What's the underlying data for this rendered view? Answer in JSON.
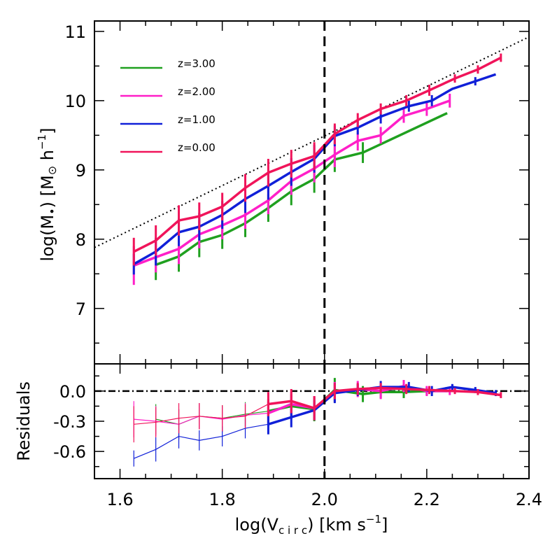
{
  "chart_data": [
    {
      "type": "line",
      "panel": "main",
      "xlabel": "log(V",
      "xlabel_sub": "c i r c",
      "xlabel_unit": ") [km s",
      "xlabel_sup": "−1",
      "xlabel_end": "]",
      "ylabel": "log(M",
      "ylabel_sub": "•",
      "ylabel_unit": ") [M",
      "ylabel_sun": "⊙",
      "ylabel_h": " h",
      "ylabel_sup": "−1",
      "ylabel_end": "]",
      "xlim": [
        1.55,
        2.4
      ],
      "ylim": [
        6.2,
        11.15
      ],
      "xticks": [
        "1.6",
        "1.8",
        "2.0",
        "2.2",
        "2.4"
      ],
      "yticks": [
        "7",
        "8",
        "9",
        "10",
        "11"
      ],
      "vline_x": 2.0,
      "reference_line": {
        "style": "dotted",
        "points": [
          [
            1.55,
            7.88
          ],
          [
            2.4,
            10.92
          ]
        ]
      },
      "legend": {
        "placement": "top-left",
        "entries": [
          "z=3.00",
          "z=2.00",
          "z=1.00",
          "z=0.00"
        ]
      },
      "series": [
        {
          "name": "z=3.00",
          "color": "#1fa01f",
          "x": [
            1.67,
            1.715,
            1.755,
            1.8,
            1.845,
            1.89,
            1.935,
            1.98,
            2.02,
            2.075,
            2.24
          ],
          "y": [
            7.63,
            7.75,
            7.96,
            8.06,
            8.23,
            8.45,
            8.69,
            8.87,
            9.15,
            9.25,
            9.82
          ],
          "err": [
            0.22,
            0.22,
            0.22,
            0.2,
            0.2,
            0.2,
            0.2,
            0.2,
            0.18,
            0.15,
            0
          ]
        },
        {
          "name": "z=2.00",
          "color": "#ff1fc8",
          "x": [
            1.627,
            1.67,
            1.715,
            1.755,
            1.8,
            1.845,
            1.89,
            1.935,
            1.98,
            2.02,
            2.065,
            2.11,
            2.155,
            2.2,
            2.245
          ],
          "y": [
            7.62,
            7.74,
            7.86,
            8.07,
            8.2,
            8.35,
            8.56,
            8.84,
            9.02,
            9.22,
            9.42,
            9.5,
            9.78,
            9.88,
            10.0
          ],
          "err": [
            0.28,
            0.22,
            0.22,
            0.2,
            0.2,
            0.2,
            0.2,
            0.2,
            0.2,
            0.18,
            0.14,
            0.12,
            0.1,
            0.1,
            0.1
          ]
        },
        {
          "name": "z=1.00",
          "color": "#1020d8",
          "x": [
            1.627,
            1.67,
            1.715,
            1.755,
            1.8,
            1.845,
            1.89,
            1.935,
            1.98,
            2.02,
            2.065,
            2.11,
            2.165,
            2.21,
            2.25,
            2.295,
            2.335
          ],
          "y": [
            7.64,
            7.82,
            8.1,
            8.18,
            8.35,
            8.58,
            8.77,
            8.97,
            9.16,
            9.49,
            9.61,
            9.77,
            9.92,
            10.0,
            10.17,
            10.28,
            10.38
          ],
          "err": [
            0.15,
            0.2,
            0.2,
            0.2,
            0.2,
            0.2,
            0.2,
            0.2,
            0.2,
            0.15,
            0.1,
            0.1,
            0.08,
            0.08,
            0,
            0.06,
            0
          ]
        },
        {
          "name": "z=0.00",
          "color": "#f0145a",
          "x": [
            1.627,
            1.67,
            1.715,
            1.755,
            1.8,
            1.845,
            1.89,
            1.935,
            1.98,
            2.02,
            2.065,
            2.11,
            2.16,
            2.205,
            2.255,
            2.3,
            2.345
          ],
          "y": [
            7.82,
            7.98,
            8.27,
            8.33,
            8.47,
            8.74,
            8.96,
            9.09,
            9.2,
            9.52,
            9.72,
            9.88,
            10.0,
            10.15,
            10.32,
            10.45,
            10.62
          ],
          "err": [
            0.2,
            0.22,
            0.22,
            0.2,
            0.2,
            0.2,
            0.2,
            0.2,
            0.2,
            0.15,
            0.1,
            0.08,
            0.08,
            0.08,
            0.06,
            0.06,
            0.06
          ]
        }
      ]
    },
    {
      "type": "line",
      "panel": "residuals",
      "ylabel": "Residuals",
      "xlim": [
        1.55,
        2.4
      ],
      "ylim": [
        -0.87,
        0.27
      ],
      "yticks": [
        "0.0",
        "-0.3",
        "-0.6"
      ],
      "hline_y": 0.0,
      "vline_x": 2.0,
      "series": [
        {
          "name": "z=3.00",
          "color": "#1fa01f",
          "thick_from_x": 1.89,
          "x": [
            1.67,
            1.715,
            1.755,
            1.8,
            1.845,
            1.89,
            1.935,
            1.98,
            2.02,
            2.075,
            2.11,
            2.155,
            2.2,
            2.24
          ],
          "y": [
            -0.28,
            -0.33,
            -0.25,
            -0.27,
            -0.23,
            -0.2,
            -0.15,
            -0.18,
            0.01,
            -0.03,
            -0.01,
            -0.01,
            0.0,
            0.0
          ],
          "err": [
            0.15,
            0.15,
            0.13,
            0.13,
            0.12,
            0.12,
            0.12,
            0.12,
            0.12,
            0.08,
            0.06,
            0.06,
            0.04,
            0
          ]
        },
        {
          "name": "z=2.00",
          "color": "#ff1fc8",
          "thick_from_x": 1.89,
          "x": [
            1.627,
            1.67,
            1.715,
            1.755,
            1.8,
            1.845,
            1.89,
            1.935,
            1.98,
            2.02,
            2.065,
            2.11,
            2.155,
            2.2,
            2.245
          ],
          "y": [
            -0.28,
            -0.3,
            -0.33,
            -0.25,
            -0.28,
            -0.24,
            -0.22,
            -0.13,
            -0.17,
            -0.01,
            0.02,
            0.0,
            0.05,
            0.0,
            0.0
          ],
          "err": [
            0.18,
            0.15,
            0.15,
            0.13,
            0.13,
            0.12,
            0.12,
            0.12,
            0.12,
            0.1,
            0.08,
            0.08,
            0.06,
            0.05,
            0.04
          ]
        },
        {
          "name": "z=1.00",
          "color": "#1020d8",
          "thick_from_x": 1.89,
          "x": [
            1.627,
            1.67,
            1.715,
            1.755,
            1.8,
            1.845,
            1.89,
            1.935,
            1.98,
            2.02,
            2.065,
            2.11,
            2.165,
            2.21,
            2.25,
            2.295,
            2.335
          ],
          "y": [
            -0.67,
            -0.58,
            -0.45,
            -0.49,
            -0.45,
            -0.37,
            -0.33,
            -0.26,
            -0.19,
            -0.02,
            0.01,
            0.04,
            0.04,
            0.0,
            0.04,
            0.01,
            -0.02
          ],
          "err": [
            0.08,
            0.12,
            0.12,
            0.1,
            0.1,
            0.1,
            0.1,
            0.1,
            0.1,
            0.1,
            0.06,
            0.06,
            0.05,
            0.05,
            0.03,
            0.03,
            0.03
          ]
        },
        {
          "name": "z=0.00",
          "color": "#f0145a",
          "thick_from_x": 1.89,
          "x": [
            1.627,
            1.67,
            1.715,
            1.755,
            1.8,
            1.845,
            1.89,
            1.935,
            1.98,
            2.02,
            2.065,
            2.11,
            2.16,
            2.205,
            2.255,
            2.3,
            2.345
          ],
          "y": [
            -0.33,
            -0.31,
            -0.27,
            -0.25,
            -0.27,
            -0.25,
            -0.13,
            -0.1,
            -0.17,
            0.0,
            0.02,
            0.03,
            0.02,
            0.01,
            0.0,
            -0.01,
            -0.04
          ],
          "err": [
            0.18,
            0.15,
            0.15,
            0.13,
            0.13,
            0.12,
            0.12,
            0.12,
            0.12,
            0.08,
            0.06,
            0.05,
            0.05,
            0.04,
            0.03,
            0.03,
            0.03
          ]
        }
      ]
    }
  ]
}
